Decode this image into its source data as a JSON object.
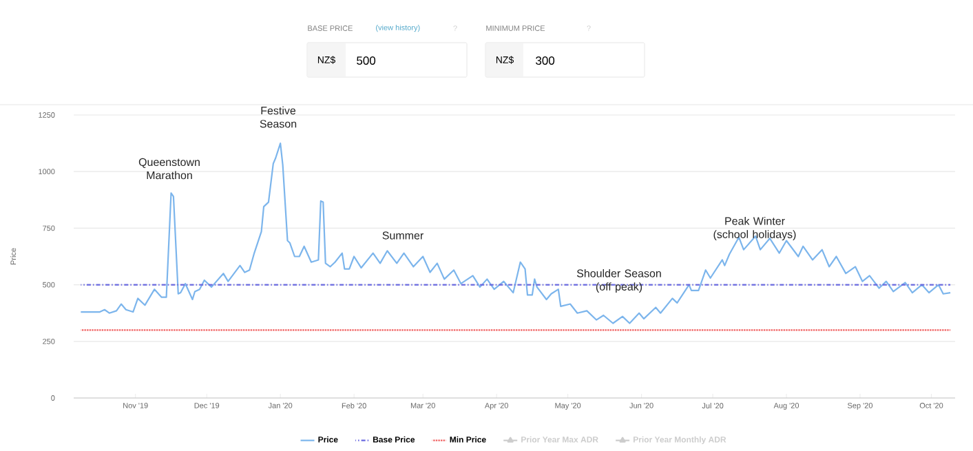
{
  "chart_data": {
    "type": "line",
    "ylabel": "Price",
    "xlim": [
      "2019-10-06",
      "2020-10-11"
    ],
    "xticks": [
      {
        "value": "2019-11-01",
        "label": "Nov '19"
      },
      {
        "value": "2019-12-01",
        "label": "Dec '19"
      },
      {
        "value": "2020-01-01",
        "label": "Jan '20"
      },
      {
        "value": "2020-02-01",
        "label": "Feb '20"
      },
      {
        "value": "2020-03-01",
        "label": "Mar '20"
      },
      {
        "value": "2020-04-01",
        "label": "Apr '20"
      },
      {
        "value": "2020-05-01",
        "label": "May '20"
      },
      {
        "value": "2020-06-01",
        "label": "Jun '20"
      },
      {
        "value": "2020-07-01",
        "label": "Jul '20"
      },
      {
        "value": "2020-08-01",
        "label": "Aug '20"
      },
      {
        "value": "2020-09-01",
        "label": "Sep '20"
      },
      {
        "value": "2020-10-01",
        "label": "Oct '20"
      }
    ],
    "ylim": [
      0,
      1250
    ],
    "yticks": [
      0,
      250,
      500,
      750,
      1000,
      1250
    ],
    "grid": "y",
    "legend": "bottom",
    "marker": "none",
    "series": [
      {
        "name": "Price",
        "color": "#7cb5ec",
        "line_style": "solid",
        "x": [
          "2019-10-09",
          "2019-10-17",
          "2019-10-19",
          "2019-10-21",
          "2019-10-24",
          "2019-10-26",
          "2019-10-28",
          "2019-10-31",
          "2019-11-02",
          "2019-11-05",
          "2019-11-09",
          "2019-11-12",
          "2019-11-14",
          "2019-11-16",
          "2019-11-17",
          "2019-11-19",
          "2019-11-20",
          "2019-11-22",
          "2019-11-25",
          "2019-11-26",
          "2019-11-28",
          "2019-11-30",
          "2019-12-03",
          "2019-12-08",
          "2019-12-10",
          "2019-12-15",
          "2019-12-17",
          "2019-12-19",
          "2019-12-21",
          "2019-12-24",
          "2019-12-25",
          "2019-12-27",
          "2019-12-29",
          "2019-12-30",
          "2020-01-01",
          "2020-01-02",
          "2020-01-04",
          "2020-01-05",
          "2020-01-07",
          "2020-01-09",
          "2020-01-11",
          "2020-01-14",
          "2020-01-17",
          "2020-01-18",
          "2020-01-19",
          "2020-01-20",
          "2020-01-22",
          "2020-01-24",
          "2020-01-27",
          "2020-01-28",
          "2020-01-30",
          "2020-02-01",
          "2020-02-04",
          "2020-02-09",
          "2020-02-12",
          "2020-02-15",
          "2020-02-19",
          "2020-02-22",
          "2020-02-26",
          "2020-03-01",
          "2020-03-04",
          "2020-03-07",
          "2020-03-10",
          "2020-03-14",
          "2020-03-17",
          "2020-03-22",
          "2020-03-25",
          "2020-03-28",
          "2020-03-31",
          "2020-04-04",
          "2020-04-08",
          "2020-04-11",
          "2020-04-13",
          "2020-04-14",
          "2020-04-16",
          "2020-04-17",
          "2020-04-18",
          "2020-04-22",
          "2020-04-24",
          "2020-04-27",
          "2020-04-28",
          "2020-05-02",
          "2020-05-05",
          "2020-05-09",
          "2020-05-13",
          "2020-05-16",
          "2020-05-20",
          "2020-05-24",
          "2020-05-27",
          "2020-05-31",
          "2020-06-02",
          "2020-06-07",
          "2020-06-09",
          "2020-06-14",
          "2020-06-16",
          "2020-06-21",
          "2020-06-22",
          "2020-06-25",
          "2020-06-28",
          "2020-06-30",
          "2020-07-05",
          "2020-07-06",
          "2020-07-08",
          "2020-07-12",
          "2020-07-14",
          "2020-07-19",
          "2020-07-21",
          "2020-07-25",
          "2020-07-29",
          "2020-08-01",
          "2020-08-06",
          "2020-08-08",
          "2020-08-12",
          "2020-08-16",
          "2020-08-19",
          "2020-08-22",
          "2020-08-26",
          "2020-08-30",
          "2020-09-02",
          "2020-09-05",
          "2020-09-09",
          "2020-09-12",
          "2020-09-15",
          "2020-09-20",
          "2020-09-23",
          "2020-09-27",
          "2020-09-30",
          "2020-10-04",
          "2020-10-06",
          "2020-10-09"
        ],
        "values": [
          380,
          380,
          390,
          375,
          385,
          415,
          390,
          380,
          440,
          410,
          480,
          445,
          445,
          905,
          890,
          460,
          465,
          505,
          435,
          470,
          480,
          520,
          490,
          550,
          515,
          585,
          555,
          565,
          640,
          735,
          845,
          865,
          1035,
          1060,
          1125,
          1030,
          695,
          685,
          625,
          625,
          670,
          600,
          610,
          870,
          865,
          595,
          580,
          600,
          640,
          570,
          570,
          625,
          575,
          640,
          595,
          650,
          595,
          640,
          580,
          625,
          555,
          595,
          525,
          565,
          505,
          540,
          490,
          525,
          480,
          515,
          465,
          600,
          570,
          455,
          455,
          525,
          490,
          435,
          460,
          480,
          405,
          415,
          375,
          385,
          345,
          365,
          330,
          360,
          330,
          375,
          350,
          400,
          375,
          440,
          420,
          500,
          475,
          475,
          565,
          530,
          610,
          585,
          635,
          710,
          655,
          715,
          655,
          705,
          640,
          695,
          625,
          670,
          610,
          655,
          580,
          625,
          550,
          580,
          515,
          540,
          485,
          515,
          470,
          510,
          465,
          500,
          465,
          500,
          460,
          465
        ]
      },
      {
        "name": "Base Price",
        "color": "#6a6ae0",
        "line_style": "dashdot",
        "x": [
          "2019-10-09",
          "2020-10-09"
        ],
        "values": [
          500,
          500
        ]
      },
      {
        "name": "Min Price",
        "color": "#f06060",
        "line_style": "dotted",
        "x": [
          "2019-10-09",
          "2020-10-09"
        ],
        "values": [
          300,
          300
        ]
      },
      {
        "name": "Prior Year Max ADR",
        "color": "#cccccc",
        "marker": "triangle",
        "values": [
          null
        ]
      },
      {
        "name": "Prior Year Monthly ADR",
        "color": "#cccccc",
        "marker": "triangle",
        "values": [
          null
        ]
      }
    ],
    "annotations": [
      "Queenstown Marathon",
      "Festive Season",
      "Summer",
      "Shoulder Season (off peak)",
      "Peak Winter (school holidays)",
      "BASE PRICE",
      "(view history)",
      "?",
      "NZ$",
      "500",
      "MINIMUM PRICE",
      "?",
      "NZ$",
      "300"
    ]
  }
}
